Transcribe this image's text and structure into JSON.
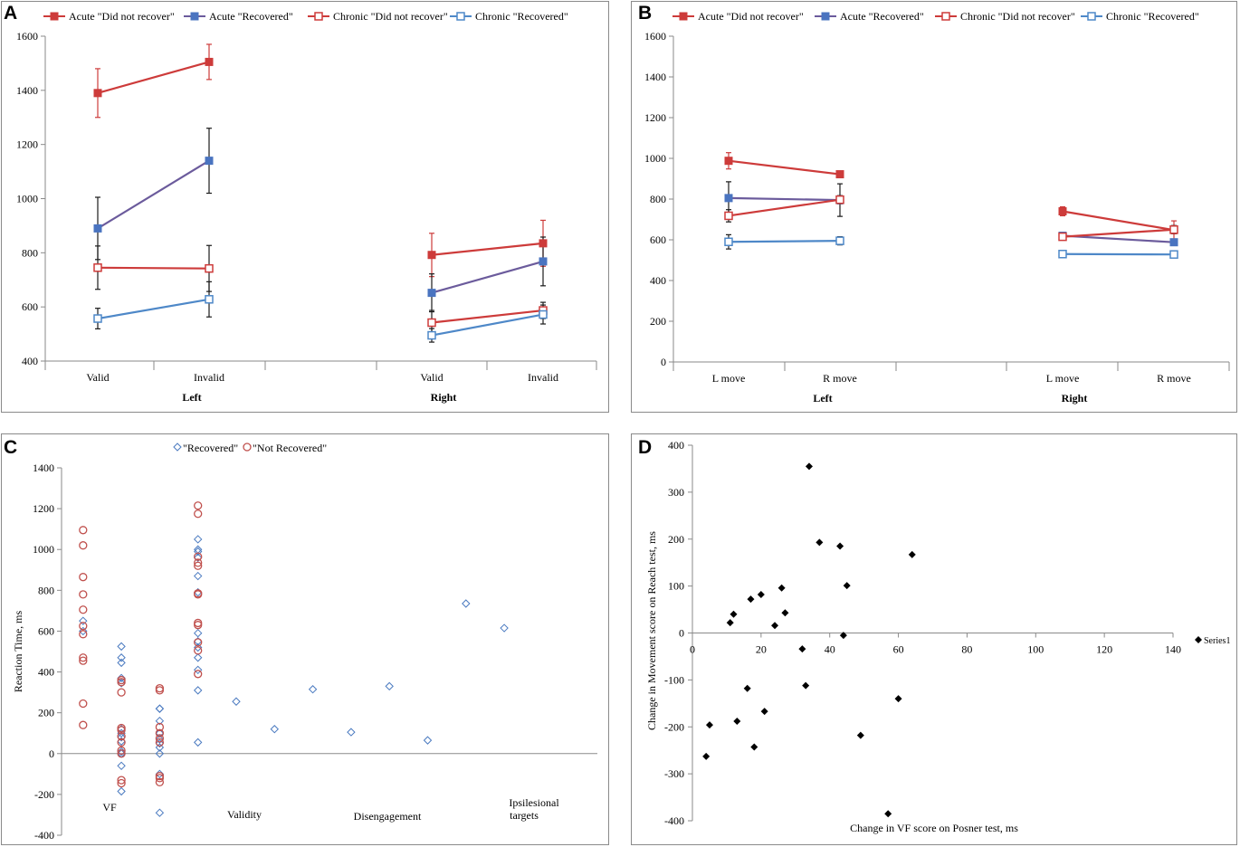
{
  "colors": {
    "acute": "#cd3b3a",
    "acute_rec": "#4a74c0",
    "acute_rec_line": "#6b5b9c",
    "chronic_dnr": "#cd3b3a",
    "chronic_rec": "#4e88c8",
    "recovered": "#4a7ac0",
    "not_recovered": "#c0504d",
    "scatter": "#000000",
    "axis": "#8a8a8a"
  },
  "panels": {
    "A": "A",
    "B": "B",
    "C": "C",
    "D": "D"
  },
  "chart_data": [
    {
      "id": "A",
      "type": "line",
      "title": "",
      "legend_position": "top",
      "categories": [
        "Valid",
        "Invalid",
        "Valid",
        "Invalid"
      ],
      "groups": [
        "Left",
        "Right"
      ],
      "ylim": [
        400,
        1600
      ],
      "yticks": [
        "400",
        "600",
        "800",
        "1000",
        "1200",
        "1400",
        "1600"
      ],
      "series": [
        {
          "name": "Acute \"Did not recover\"",
          "marker": "filled-square",
          "values": [
            1390,
            1505,
            792,
            835
          ],
          "errors": [
            90,
            65,
            80,
            85
          ]
        },
        {
          "name": "Acute \"Recovered\"",
          "marker": "filled-square",
          "values": [
            890,
            1140,
            652,
            768
          ],
          "errors": [
            115,
            120,
            70,
            90
          ]
        },
        {
          "name": "Chronic \"Did not recover\"",
          "marker": "open-square",
          "values": [
            745,
            742,
            542,
            587
          ],
          "errors": [
            80,
            85,
            45,
            30
          ]
        },
        {
          "name": "Chronic \"Recovered\"",
          "marker": "open-square",
          "values": [
            557,
            628,
            495,
            572
          ],
          "errors": [
            38,
            65,
            25,
            35
          ]
        }
      ]
    },
    {
      "id": "B",
      "type": "line",
      "title": "",
      "legend_position": "top",
      "categories": [
        "L move",
        "R move",
        "L move",
        "R move"
      ],
      "groups": [
        "Left",
        "Right"
      ],
      "ylim": [
        0,
        1600
      ],
      "yticks": [
        "0",
        "200",
        "400",
        "600",
        "800",
        "1000",
        "1200",
        "1400",
        "1600"
      ],
      "series": [
        {
          "name": "Acute \"Did not recover\"",
          "marker": "filled-square",
          "values": [
            988,
            922,
            740,
            648
          ],
          "errors": [
            40,
            15,
            22,
            45
          ]
        },
        {
          "name": "Acute \"Recovered\"",
          "marker": "filled-square",
          "values": [
            805,
            795,
            620,
            588
          ],
          "errors": [
            80,
            80,
            15,
            15
          ]
        },
        {
          "name": "Chronic \"Did not recover\"",
          "marker": "open-square",
          "values": [
            718,
            797,
            615,
            650
          ],
          "errors": [
            30,
            20,
            15,
            20
          ]
        },
        {
          "name": "Chronic \"Recovered\"",
          "marker": "open-square",
          "values": [
            590,
            595,
            530,
            528
          ],
          "errors": [
            35,
            20,
            12,
            12
          ]
        }
      ]
    },
    {
      "id": "C",
      "type": "scatter",
      "ylabel": "Reaction Time, ms",
      "xlabel": "",
      "legend_position": "top",
      "ylim": [
        -400,
        1400
      ],
      "yticks": [
        "-400",
        "-200",
        "0",
        "200",
        "400",
        "600",
        "800",
        "1000",
        "1200",
        "1400"
      ],
      "category_labels": [
        "VF",
        "Validity",
        "Disengagement",
        "Ipsilesional targets"
      ],
      "series": [
        {
          "name": "\"Recovered\"",
          "marker": "open-diamond",
          "points": [
            [
              1,
              650
            ],
            [
              1,
              600
            ],
            [
              2,
              525
            ],
            [
              2,
              470
            ],
            [
              2,
              445
            ],
            [
              2,
              370
            ],
            [
              2,
              345
            ],
            [
              2,
              120
            ],
            [
              2,
              100
            ],
            [
              2,
              80
            ],
            [
              2,
              60
            ],
            [
              2,
              10
            ],
            [
              2,
              0
            ],
            [
              2,
              -60
            ],
            [
              2,
              -185
            ],
            [
              3,
              220
            ],
            [
              3,
              220
            ],
            [
              3,
              160
            ],
            [
              3,
              100
            ],
            [
              3,
              70
            ],
            [
              3,
              50
            ],
            [
              3,
              30
            ],
            [
              3,
              0
            ],
            [
              3,
              -100
            ],
            [
              3,
              -290
            ],
            [
              4,
              1050
            ],
            [
              4,
              1000
            ],
            [
              4,
              990
            ],
            [
              4,
              960
            ],
            [
              4,
              870
            ],
            [
              4,
              790
            ],
            [
              4,
              590
            ],
            [
              4,
              550
            ],
            [
              4,
              520
            ],
            [
              4,
              470
            ],
            [
              4,
              410
            ],
            [
              4,
              310
            ],
            [
              4,
              55
            ],
            [
              5,
              255
            ],
            [
              6,
              120
            ],
            [
              7,
              315
            ],
            [
              8,
              105
            ],
            [
              9,
              330
            ],
            [
              10,
              65
            ],
            [
              11,
              735
            ],
            [
              12,
              615
            ]
          ]
        },
        {
          "name": "\"Not Recovered\"",
          "marker": "open-circle",
          "points": [
            [
              1,
              1095
            ],
            [
              1,
              1020
            ],
            [
              1,
              865
            ],
            [
              1,
              780
            ],
            [
              1,
              705
            ],
            [
              1,
              625
            ],
            [
              1,
              585
            ],
            [
              1,
              470
            ],
            [
              1,
              455
            ],
            [
              1,
              245
            ],
            [
              1,
              140
            ],
            [
              2,
              360
            ],
            [
              2,
              350
            ],
            [
              2,
              300
            ],
            [
              2,
              125
            ],
            [
              2,
              115
            ],
            [
              2,
              85
            ],
            [
              2,
              55
            ],
            [
              2,
              15
            ],
            [
              2,
              0
            ],
            [
              2,
              -130
            ],
            [
              2,
              -145
            ],
            [
              3,
              320
            ],
            [
              3,
              310
            ],
            [
              3,
              130
            ],
            [
              3,
              100
            ],
            [
              3,
              75
            ],
            [
              3,
              55
            ],
            [
              3,
              -110
            ],
            [
              3,
              -120
            ],
            [
              3,
              -140
            ],
            [
              4,
              1215
            ],
            [
              4,
              1175
            ],
            [
              4,
              965
            ],
            [
              4,
              935
            ],
            [
              4,
              920
            ],
            [
              4,
              785
            ],
            [
              4,
              780
            ],
            [
              4,
              640
            ],
            [
              4,
              630
            ],
            [
              4,
              545
            ],
            [
              4,
              505
            ],
            [
              4,
              390
            ]
          ]
        }
      ]
    },
    {
      "id": "D",
      "type": "scatter",
      "xlabel": "Change in VF score on Posner test, ms",
      "ylabel": "Change in Movement score on Reach test, ms",
      "xlim": [
        0,
        140
      ],
      "ylim": [
        -400,
        400
      ],
      "xticks": [
        "0",
        "20",
        "40",
        "60",
        "80",
        "100",
        "120",
        "140"
      ],
      "yticks": [
        "-400",
        "-300",
        "-200",
        "-100",
        "0",
        "100",
        "200",
        "300",
        "400"
      ],
      "legend_position": "right",
      "series": [
        {
          "name": "Series1",
          "marker": "filled-diamond",
          "points": [
            [
              34,
              355
            ],
            [
              37,
              193
            ],
            [
              43,
              185
            ],
            [
              64,
              167
            ],
            [
              45,
              101
            ],
            [
              26,
              96
            ],
            [
              20,
              82
            ],
            [
              17,
              72
            ],
            [
              27,
              43
            ],
            [
              12,
              40
            ],
            [
              11,
              22
            ],
            [
              24,
              16
            ],
            [
              44,
              -5
            ],
            [
              32,
              -34
            ],
            [
              33,
              -112
            ],
            [
              16,
              -118
            ],
            [
              60,
              -140
            ],
            [
              21,
              -167
            ],
            [
              13,
              -188
            ],
            [
              5,
              -196
            ],
            [
              49,
              -218
            ],
            [
              18,
              -243
            ],
            [
              4,
              -263
            ],
            [
              57,
              -385
            ]
          ]
        }
      ]
    }
  ]
}
